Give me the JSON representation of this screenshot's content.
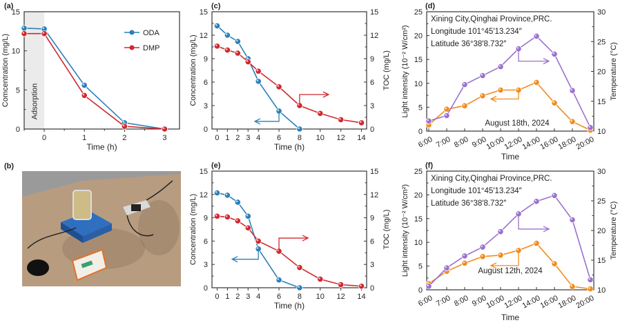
{
  "panel_labels": [
    "(a)",
    "(b)",
    "(c)",
    "(d)",
    "(e)",
    "(f)"
  ],
  "photo": {
    "description_label": "(b)"
  },
  "colors": {
    "blue": "#2a7fba",
    "red": "#d0282e",
    "orange": "#f28a1e",
    "purple": "#9a70cc",
    "shade": "#ebebeb"
  },
  "chart_data": [
    {
      "id": "a",
      "type": "line",
      "xlabel": "Time (h)",
      "ylabel": "Comcentration (mg/L)",
      "xlim": [
        -0.5,
        3.37
      ],
      "ylim": [
        0,
        15
      ],
      "xticks": [
        0,
        1,
        2,
        3
      ],
      "yticks": [
        0,
        5,
        10,
        15
      ],
      "shaded_region": {
        "x": [
          -0.5,
          0
        ],
        "label": "Adsorption"
      },
      "legend": "top-right",
      "x": [
        -0.5,
        0,
        1,
        2,
        3
      ],
      "series": [
        {
          "name": "ODA",
          "color": "#2a7fba",
          "values": [
            12.9,
            12.8,
            5.6,
            0.8,
            0
          ]
        },
        {
          "name": "DMP",
          "color": "#d0282e",
          "values": [
            12.2,
            12.2,
            4.3,
            0.35,
            0
          ]
        }
      ]
    },
    {
      "id": "c",
      "type": "line",
      "xlabel": "Time (h)",
      "ylabel": "Concentration (mg/L)",
      "y2label": "TOC (mg/L)",
      "xlim": [
        -0.5,
        14.5
      ],
      "ylim": [
        0,
        15
      ],
      "y2lim": [
        0,
        15
      ],
      "xticks": [
        0,
        1,
        2,
        3,
        4,
        6,
        8,
        10,
        12,
        14
      ],
      "yticks": [
        0,
        3,
        6,
        9,
        12,
        15
      ],
      "y2ticks": [
        0,
        3,
        6,
        9,
        12,
        15
      ],
      "series": [
        {
          "axis": "left",
          "color": "#2a7fba",
          "x": [
            0,
            1,
            2,
            3,
            4,
            6,
            8
          ],
          "values": [
            13.2,
            12.0,
            11.2,
            9.0,
            6.1,
            2.3,
            0
          ]
        },
        {
          "axis": "right",
          "color": "#d0282e",
          "x": [
            0,
            1,
            2,
            3,
            4,
            6,
            8,
            10,
            12,
            14
          ],
          "values": [
            10.6,
            10.1,
            9.7,
            8.6,
            7.4,
            5.4,
            3.0,
            2.0,
            1.2,
            0.8
          ]
        }
      ]
    },
    {
      "id": "d",
      "type": "line",
      "xlabel": "Time",
      "ylabel": "Light intensity (10⁻² W/cm²)",
      "y2label": "Temperature (°C)",
      "ylim": [
        0,
        25
      ],
      "y2lim": [
        10,
        30
      ],
      "yticks": [
        0,
        5,
        10,
        15,
        20,
        25
      ],
      "y2ticks": [
        10,
        15,
        20,
        25,
        30
      ],
      "categories": [
        "6:00",
        "7:00",
        "8:00",
        "9:00",
        "10:00",
        "12:00",
        "14:00",
        "16:00",
        "18:00",
        "20:00"
      ],
      "annotations": [
        "Xining City,Qinghai Province,PRC.",
        "Longitude 101°45′13.234″",
        "Latitude 36°38′8.732″"
      ],
      "date": "August 18th, 2024",
      "series": [
        {
          "axis": "left",
          "color": "#f28a1e",
          "values": [
            1.3,
            4.6,
            5.3,
            7.4,
            8.6,
            8.6,
            10.2,
            5.9,
            2.0,
            0.2
          ]
        },
        {
          "axis": "right",
          "color": "#9a70cc",
          "values": [
            11.7,
            12.6,
            17.8,
            19.3,
            20.8,
            23.8,
            25.9,
            22.9,
            16.8,
            10.6
          ]
        }
      ]
    },
    {
      "id": "e",
      "type": "line",
      "xlabel": "Time (h)",
      "ylabel": "Concentration (mg/L)",
      "y2label": "TOC (mg/L)",
      "xlim": [
        -0.5,
        14.5
      ],
      "ylim": [
        0,
        15
      ],
      "y2lim": [
        0,
        15
      ],
      "xticks": [
        0,
        1,
        2,
        3,
        4,
        6,
        8,
        10,
        12,
        14
      ],
      "yticks": [
        0,
        3,
        6,
        9,
        12,
        15
      ],
      "y2ticks": [
        0,
        3,
        6,
        9,
        12,
        15
      ],
      "series": [
        {
          "axis": "left",
          "color": "#2a7fba",
          "x": [
            0,
            1,
            2,
            3,
            4,
            6,
            8
          ],
          "values": [
            12.2,
            11.9,
            11.0,
            9.2,
            5.0,
            1.0,
            0
          ]
        },
        {
          "axis": "right",
          "color": "#d0282e",
          "x": [
            0,
            1,
            2,
            3,
            4,
            6,
            8,
            10,
            12,
            14
          ],
          "values": [
            9.2,
            9.1,
            8.6,
            7.7,
            6.0,
            4.7,
            2.6,
            1.1,
            0.4,
            0.2
          ]
        }
      ]
    },
    {
      "id": "f",
      "type": "line",
      "xlabel": "Time",
      "ylabel": "Light intensity (10⁻² W/cm²)",
      "y2label": "Temperature (°C)",
      "ylim": [
        0,
        25
      ],
      "y2lim": [
        10,
        30
      ],
      "yticks": [
        0,
        5,
        10,
        15,
        20,
        25
      ],
      "y2ticks": [
        10,
        15,
        20,
        25,
        30
      ],
      "categories": [
        "6:00",
        "7:00",
        "8:00",
        "9:00",
        "10:00",
        "12:00",
        "14:00",
        "16:00",
        "18:00",
        "20:00"
      ],
      "annotations": [
        "Xining City,Qinghai Province,PRC.",
        "Longitude 101°45′13.234″",
        "Latitude 36°38′8.732″"
      ],
      "date": "August 12th, 2024",
      "series": [
        {
          "axis": "left",
          "color": "#f28a1e",
          "values": [
            1.3,
            3.9,
            5.6,
            7.0,
            7.3,
            8.3,
            9.8,
            5.5,
            0.7,
            0.2
          ]
        },
        {
          "axis": "right",
          "color": "#9a70cc",
          "values": [
            10.6,
            13.7,
            15.7,
            17.2,
            19.8,
            22.8,
            24.9,
            25.9,
            21.8,
            11.7
          ]
        }
      ]
    }
  ]
}
